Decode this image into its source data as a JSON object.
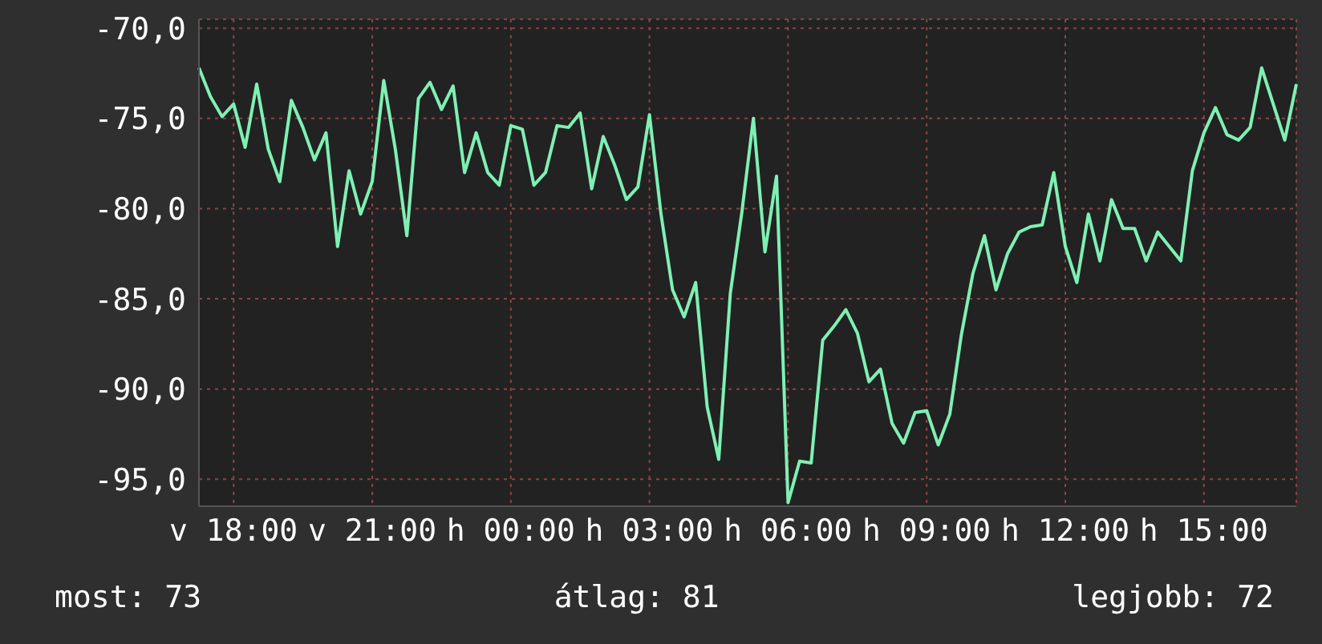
{
  "chart_data": {
    "type": "line",
    "categories": [
      null,
      null,
      null,
      "v 18:00",
      null,
      null,
      null,
      null,
      null,
      null,
      null,
      null,
      null,
      null,
      null,
      "v 21:00",
      null,
      null,
      null,
      null,
      null,
      null,
      null,
      null,
      null,
      null,
      null,
      "h 00:00",
      null,
      null,
      null,
      null,
      null,
      null,
      null,
      null,
      null,
      null,
      null,
      "h 03:00",
      null,
      null,
      null,
      null,
      null,
      null,
      null,
      null,
      null,
      null,
      null,
      "h 06:00",
      null,
      null,
      null,
      null,
      null,
      null,
      null,
      null,
      null,
      null,
      null,
      "h 09:00",
      null,
      null,
      null,
      null,
      null,
      null,
      null,
      null,
      null,
      null,
      null,
      "h 12:00",
      null,
      null,
      null,
      null,
      null,
      null,
      null,
      null,
      null,
      null,
      null,
      "h 15:00",
      null,
      null,
      null,
      null,
      null,
      null,
      null,
      null
    ],
    "series": [
      {
        "color": "#7ff0b4",
        "values": [
          -72.2,
          -73.8,
          -74.9,
          -74.2,
          -76.6,
          -73.1,
          -76.7,
          -78.5,
          -74.0,
          -75.5,
          -77.3,
          -75.8,
          -82.1,
          -77.9,
          -80.3,
          -78.5,
          -72.9,
          -76.7,
          -81.5,
          -73.9,
          -73.0,
          -74.5,
          -73.2,
          -78.0,
          -75.8,
          -78.0,
          -78.7,
          -75.4,
          -75.6,
          -78.7,
          -78.0,
          -75.4,
          -75.5,
          -74.7,
          -78.9,
          -76.0,
          -77.6,
          -79.5,
          -78.8,
          -74.8,
          -80.3,
          -84.5,
          -86.0,
          -84.1,
          -91.0,
          -93.9,
          -84.7,
          -80.2,
          -75.0,
          -82.4,
          -78.2,
          -96.3,
          -94.0,
          -94.1,
          -87.3,
          -86.5,
          -85.6,
          -86.9,
          -89.6,
          -88.9,
          -91.9,
          -93.0,
          -91.3,
          -91.2,
          -93.1,
          -91.4,
          -87.0,
          -83.6,
          -81.5,
          -84.5,
          -82.5,
          -81.3,
          -81.0,
          -80.9,
          -78.0,
          -82.1,
          -84.1,
          -80.3,
          -82.9,
          -79.5,
          -81.1,
          -81.1,
          -82.9,
          -81.3,
          -82.1,
          -82.9,
          -77.9,
          -75.8,
          -74.4,
          -75.9,
          -76.2,
          -75.5,
          -72.2,
          -74.2,
          -76.2,
          -73.1
        ]
      }
    ],
    "ylim": [
      -96.5,
      -69.5
    ],
    "yticks": [
      {
        "value": -95,
        "label": "-95,0"
      },
      {
        "value": -90,
        "label": "-90,0"
      },
      {
        "value": -85,
        "label": "-85,0"
      },
      {
        "value": -80,
        "label": "-80,0"
      },
      {
        "value": -75,
        "label": "-75,0"
      },
      {
        "value": -70,
        "label": "-70,0"
      }
    ],
    "grid": true,
    "annotations": [
      "most: 73",
      "átlag: 81",
      "legjobb: 72"
    ]
  }
}
